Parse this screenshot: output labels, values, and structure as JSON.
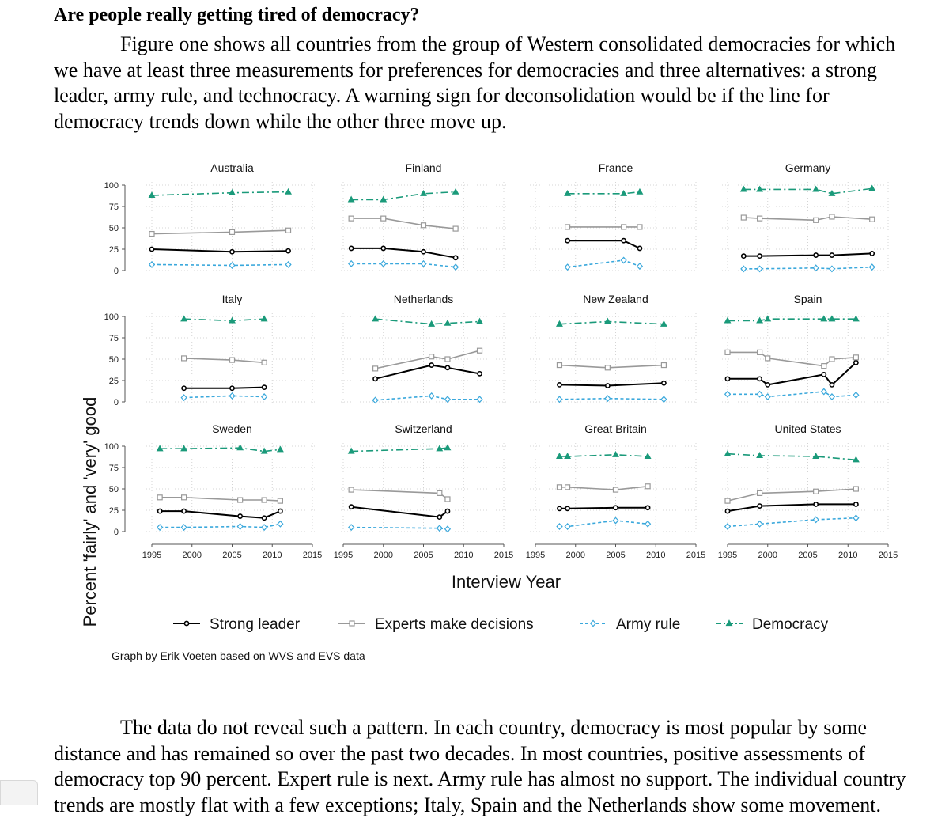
{
  "document": {
    "heading": "Are people really getting tired of democracy?",
    "paragraph1": "Figure one shows all countries from the group of Western consolidated democracies for which we have at least three measurements for preferences for democracies and three alternatives: a strong leader, army rule, and technocracy. A warning sign for deconsolidation would be if the line for democracy trends down while the other three move up.",
    "paragraph2": "The data do not reveal such a pattern. In each country, democracy is most popular by some distance and has remained so over the past two decades. In most countries, positive assessments of democracy top 90 percent. Expert rule is next. Army rule has almost no support. The individual country trends are mostly flat with a few exceptions; Italy, Spain and the Netherlands show some movement."
  },
  "chart_data": {
    "type": "line",
    "title": "",
    "xlabel": "Interview Year",
    "ylabel": "Percent 'fairly' and 'very' good",
    "xlim": [
      1995,
      2015
    ],
    "ylim": [
      0,
      100
    ],
    "xticks": [
      1995,
      2000,
      2005,
      2010,
      2015
    ],
    "yticks": [
      0,
      25,
      50,
      75,
      100
    ],
    "grid": true,
    "legend_position": "bottom",
    "note": "Graph by Erik Voeten based on WVS and EVS data",
    "series_styles": [
      {
        "key": "strong",
        "name": "Strong leader",
        "color": "#000000",
        "marker": "circle",
        "dash": "solid"
      },
      {
        "key": "experts",
        "name": "Experts make decisions",
        "color": "#999999",
        "marker": "square",
        "dash": "solid"
      },
      {
        "key": "army",
        "name": "Army rule",
        "color": "#3aa8dc",
        "marker": "diamond",
        "dash": "dash"
      },
      {
        "key": "democracy",
        "name": "Democracy",
        "color": "#1a9a7a",
        "marker": "triangle",
        "dash": "dashdot"
      }
    ],
    "panels": [
      {
        "country": "Australia",
        "series": {
          "strong": [
            [
              1995,
              25
            ],
            [
              2005,
              22
            ],
            [
              2012,
              23
            ]
          ],
          "experts": [
            [
              1995,
              43
            ],
            [
              2005,
              45
            ],
            [
              2012,
              47
            ]
          ],
          "army": [
            [
              1995,
              7
            ],
            [
              2005,
              6
            ],
            [
              2012,
              7
            ]
          ],
          "democracy": [
            [
              1995,
              88
            ],
            [
              2005,
              91
            ],
            [
              2012,
              92
            ]
          ]
        }
      },
      {
        "country": "Finland",
        "series": {
          "strong": [
            [
              1996,
              26
            ],
            [
              2000,
              26
            ],
            [
              2005,
              22
            ],
            [
              2009,
              15
            ]
          ],
          "experts": [
            [
              1996,
              61
            ],
            [
              2000,
              61
            ],
            [
              2005,
              53
            ],
            [
              2009,
              49
            ]
          ],
          "army": [
            [
              1996,
              8
            ],
            [
              2000,
              8
            ],
            [
              2005,
              8
            ],
            [
              2009,
              4
            ]
          ],
          "democracy": [
            [
              1996,
              83
            ],
            [
              2000,
              83
            ],
            [
              2005,
              90
            ],
            [
              2009,
              92
            ]
          ]
        }
      },
      {
        "country": "France",
        "series": {
          "strong": [
            [
              1999,
              35
            ],
            [
              2006,
              35
            ],
            [
              2008,
              26
            ]
          ],
          "experts": [
            [
              1999,
              51
            ],
            [
              2006,
              51
            ],
            [
              2008,
              51
            ]
          ],
          "army": [
            [
              1999,
              4
            ],
            [
              2006,
              12
            ],
            [
              2008,
              5
            ]
          ],
          "democracy": [
            [
              1999,
              90
            ],
            [
              2006,
              90
            ],
            [
              2008,
              92
            ]
          ]
        }
      },
      {
        "country": "Germany",
        "series": {
          "strong": [
            [
              1997,
              17
            ],
            [
              1999,
              17
            ],
            [
              2006,
              18
            ],
            [
              2008,
              18
            ],
            [
              2013,
              20
            ]
          ],
          "experts": [
            [
              1997,
              62
            ],
            [
              1999,
              61
            ],
            [
              2006,
              59
            ],
            [
              2008,
              63
            ],
            [
              2013,
              60
            ]
          ],
          "army": [
            [
              1997,
              2
            ],
            [
              1999,
              2
            ],
            [
              2006,
              3
            ],
            [
              2008,
              2
            ],
            [
              2013,
              4
            ]
          ],
          "democracy": [
            [
              1997,
              95
            ],
            [
              1999,
              95
            ],
            [
              2006,
              95
            ],
            [
              2008,
              90
            ],
            [
              2013,
              96
            ]
          ]
        }
      },
      {
        "country": "Italy",
        "series": {
          "strong": [
            [
              1999,
              16
            ],
            [
              2005,
              16
            ],
            [
              2009,
              17
            ]
          ],
          "experts": [
            [
              1999,
              51
            ],
            [
              2005,
              49
            ],
            [
              2009,
              46
            ]
          ],
          "army": [
            [
              1999,
              5
            ],
            [
              2005,
              7
            ],
            [
              2009,
              6
            ]
          ],
          "democracy": [
            [
              1999,
              97
            ],
            [
              2005,
              95
            ],
            [
              2009,
              97
            ]
          ]
        }
      },
      {
        "country": "Netherlands",
        "series": {
          "strong": [
            [
              1999,
              27
            ],
            [
              2006,
              43
            ],
            [
              2008,
              40
            ],
            [
              2012,
              33
            ]
          ],
          "experts": [
            [
              1999,
              39
            ],
            [
              2006,
              53
            ],
            [
              2008,
              50
            ],
            [
              2012,
              60
            ]
          ],
          "army": [
            [
              1999,
              2
            ],
            [
              2006,
              7
            ],
            [
              2008,
              3
            ],
            [
              2012,
              3
            ]
          ],
          "democracy": [
            [
              1999,
              97
            ],
            [
              2006,
              91
            ],
            [
              2008,
              92
            ],
            [
              2012,
              94
            ]
          ]
        }
      },
      {
        "country": "New Zealand",
        "series": {
          "strong": [
            [
              1998,
              20
            ],
            [
              2004,
              19
            ],
            [
              2011,
              22
            ]
          ],
          "experts": [
            [
              1998,
              43
            ],
            [
              2004,
              40
            ],
            [
              2011,
              43
            ]
          ],
          "army": [
            [
              1998,
              3
            ],
            [
              2004,
              4
            ],
            [
              2011,
              3
            ]
          ],
          "democracy": [
            [
              1998,
              91
            ],
            [
              2004,
              94
            ],
            [
              2011,
              91
            ]
          ]
        }
      },
      {
        "country": "Spain",
        "series": {
          "strong": [
            [
              1995,
              27
            ],
            [
              1999,
              27
            ],
            [
              2000,
              20
            ],
            [
              2007,
              32
            ],
            [
              2008,
              20
            ],
            [
              2011,
              46
            ]
          ],
          "experts": [
            [
              1995,
              58
            ],
            [
              1999,
              58
            ],
            [
              2000,
              51
            ],
            [
              2007,
              42
            ],
            [
              2008,
              50
            ],
            [
              2011,
              52
            ]
          ],
          "army": [
            [
              1995,
              9
            ],
            [
              1999,
              9
            ],
            [
              2000,
              6
            ],
            [
              2007,
              12
            ],
            [
              2008,
              6
            ],
            [
              2011,
              8
            ]
          ],
          "democracy": [
            [
              1995,
              95
            ],
            [
              1999,
              95
            ],
            [
              2000,
              97
            ],
            [
              2007,
              97
            ],
            [
              2008,
              97
            ],
            [
              2011,
              97
            ]
          ]
        }
      },
      {
        "country": "Sweden",
        "series": {
          "strong": [
            [
              1996,
              24
            ],
            [
              1999,
              24
            ],
            [
              2006,
              18
            ],
            [
              2009,
              16
            ],
            [
              2011,
              24
            ]
          ],
          "experts": [
            [
              1996,
              40
            ],
            [
              1999,
              40
            ],
            [
              2006,
              37
            ],
            [
              2009,
              37
            ],
            [
              2011,
              36
            ]
          ],
          "army": [
            [
              1996,
              5
            ],
            [
              1999,
              5
            ],
            [
              2006,
              6
            ],
            [
              2009,
              5
            ],
            [
              2011,
              9
            ]
          ],
          "democracy": [
            [
              1996,
              97
            ],
            [
              1999,
              97
            ],
            [
              2006,
              98
            ],
            [
              2009,
              94
            ],
            [
              2011,
              96
            ]
          ]
        }
      },
      {
        "country": "Switzerland",
        "series": {
          "strong": [
            [
              1996,
              29
            ],
            [
              2007,
              17
            ],
            [
              2008,
              24
            ]
          ],
          "experts": [
            [
              1996,
              49
            ],
            [
              2007,
              45
            ],
            [
              2008,
              38
            ]
          ],
          "army": [
            [
              1996,
              5
            ],
            [
              2007,
              4
            ],
            [
              2008,
              3
            ]
          ],
          "democracy": [
            [
              1996,
              94
            ],
            [
              2007,
              97
            ],
            [
              2008,
              98
            ]
          ]
        }
      },
      {
        "country": "Great Britain",
        "series": {
          "strong": [
            [
              1998,
              27
            ],
            [
              1999,
              27
            ],
            [
              2005,
              28
            ],
            [
              2009,
              28
            ]
          ],
          "experts": [
            [
              1998,
              52
            ],
            [
              1999,
              52
            ],
            [
              2005,
              49
            ],
            [
              2009,
              53
            ]
          ],
          "army": [
            [
              1998,
              6
            ],
            [
              1999,
              6
            ],
            [
              2005,
              13
            ],
            [
              2009,
              9
            ]
          ],
          "democracy": [
            [
              1998,
              88
            ],
            [
              1999,
              88
            ],
            [
              2005,
              90
            ],
            [
              2009,
              88
            ]
          ]
        }
      },
      {
        "country": "United States",
        "series": {
          "strong": [
            [
              1995,
              24
            ],
            [
              1999,
              30
            ],
            [
              2006,
              32
            ],
            [
              2011,
              32
            ]
          ],
          "experts": [
            [
              1995,
              36
            ],
            [
              1999,
              45
            ],
            [
              2006,
              47
            ],
            [
              2011,
              50
            ]
          ],
          "army": [
            [
              1995,
              6
            ],
            [
              1999,
              9
            ],
            [
              2006,
              14
            ],
            [
              2011,
              16
            ]
          ],
          "democracy": [
            [
              1995,
              91
            ],
            [
              1999,
              89
            ],
            [
              2006,
              88
            ],
            [
              2011,
              84
            ]
          ]
        }
      }
    ]
  }
}
